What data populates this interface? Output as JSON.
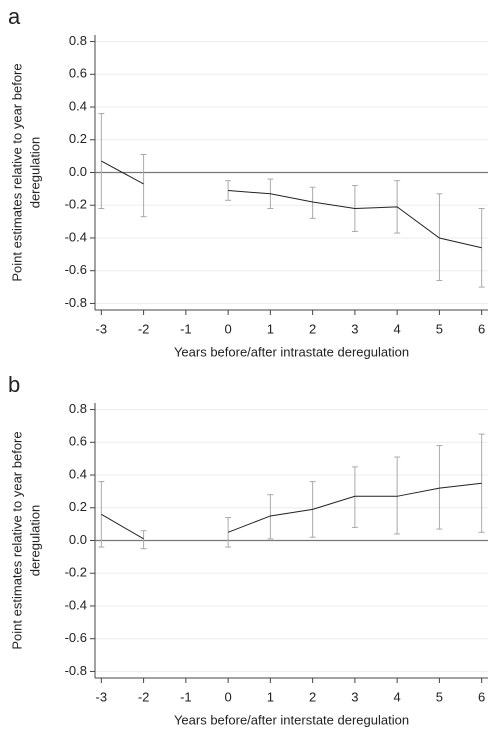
{
  "chart_data": [
    {
      "type": "line",
      "panel": "a",
      "xlabel": "Years before/after intrastate deregulation",
      "ylabel": [
        "Point estimates relative to year before",
        "deregulation"
      ],
      "x": [
        -3,
        -2,
        -1,
        0,
        1,
        2,
        3,
        4,
        5,
        6
      ],
      "series": [
        {
          "color": "#222222",
          "error_color": "#aaaaaa",
          "values": [
            0.07,
            -0.07,
            null,
            -0.11,
            -0.13,
            -0.18,
            -0.22,
            -0.21,
            -0.4,
            -0.46
          ],
          "lower": [
            -0.22,
            -0.27,
            null,
            -0.17,
            -0.22,
            -0.28,
            -0.36,
            -0.37,
            -0.66,
            -0.7
          ],
          "upper": [
            0.36,
            0.11,
            null,
            -0.05,
            -0.04,
            -0.09,
            -0.08,
            -0.05,
            -0.13,
            -0.22
          ]
        }
      ],
      "xlim": [
        -3.15,
        6.15
      ],
      "xticks": [
        -3,
        -2,
        -1,
        0,
        1,
        2,
        3,
        4,
        5,
        6
      ],
      "ylim": [
        -0.84,
        0.84
      ],
      "yticks": [
        -0.8,
        -0.6,
        -0.4,
        -0.2,
        {
          "value": 0,
          "label": "0.0"
        },
        0.2,
        0.4,
        0.6,
        0.8
      ],
      "grid": true,
      "reference_line": 0
    },
    {
      "type": "line",
      "panel": "b",
      "xlabel": "Years before/after interstate deregulation",
      "ylabel": [
        "Point estimates relative to year before",
        "deregulation"
      ],
      "x": [
        -3,
        -2,
        -1,
        0,
        1,
        2,
        3,
        4,
        5,
        6
      ],
      "series": [
        {
          "color": "#222222",
          "error_color": "#aaaaaa",
          "values": [
            0.16,
            0.01,
            null,
            0.05,
            0.15,
            0.19,
            0.27,
            0.27,
            0.32,
            0.35
          ],
          "lower": [
            -0.04,
            -0.05,
            null,
            -0.04,
            0.01,
            0.02,
            0.08,
            0.04,
            0.07,
            0.05
          ],
          "upper": [
            0.36,
            0.06,
            null,
            0.14,
            0.28,
            0.36,
            0.45,
            0.51,
            0.58,
            0.65
          ]
        }
      ],
      "xlim": [
        -3.15,
        6.15
      ],
      "xticks": [
        -3,
        -2,
        -1,
        0,
        1,
        2,
        3,
        4,
        5,
        6
      ],
      "ylim": [
        -0.84,
        0.84
      ],
      "yticks": [
        -0.8,
        -0.6,
        -0.4,
        -0.2,
        {
          "value": 0,
          "label": "0.0"
        },
        0.2,
        0.4,
        0.6,
        0.8
      ],
      "grid": true,
      "reference_line": 0
    }
  ]
}
